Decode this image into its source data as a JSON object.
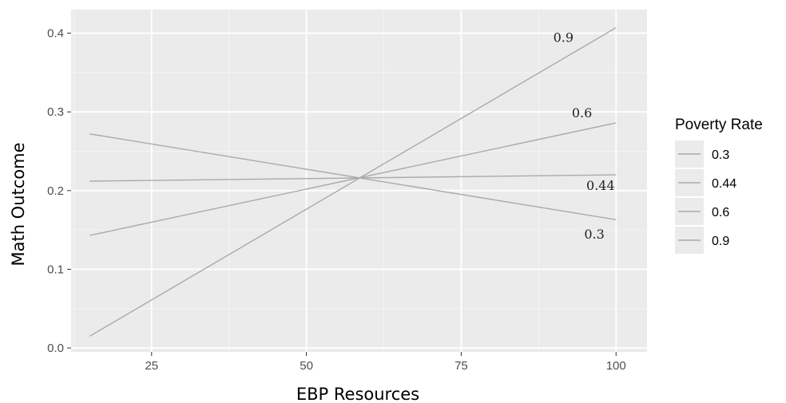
{
  "chart_data": {
    "type": "line",
    "title": "",
    "xlabel": "EBP Resources",
    "ylabel": "Math Outcome",
    "xlim": [
      12,
      105
    ],
    "ylim": [
      -0.005,
      0.43
    ],
    "x_ticks": [
      25,
      50,
      75,
      100
    ],
    "y_ticks": [
      0.0,
      0.1,
      0.2,
      0.3,
      0.4
    ],
    "x_tick_labels": [
      "25",
      "50",
      "75",
      "100"
    ],
    "y_tick_labels": [
      "0.0",
      "0.1",
      "0.2",
      "0.3",
      "0.4"
    ],
    "grid": true,
    "legend": {
      "title": "Poverty Rate",
      "position": "right",
      "entries": [
        "0.3",
        "0.44",
        "0.6",
        "0.9"
      ]
    },
    "series": [
      {
        "name": "0.3",
        "label": "0.3",
        "x": [
          15,
          100
        ],
        "y": [
          0.272,
          0.163
        ],
        "label_at": {
          "x": 96.5,
          "y": 0.139
        }
      },
      {
        "name": "0.44",
        "label": "0.44",
        "x": [
          15,
          100
        ],
        "y": [
          0.212,
          0.22
        ],
        "label_at": {
          "x": 97.5,
          "y": 0.201
        }
      },
      {
        "name": "0.6",
        "label": "0.6",
        "x": [
          15,
          100
        ],
        "y": [
          0.143,
          0.286
        ],
        "label_at": {
          "x": 94.5,
          "y": 0.293
        }
      },
      {
        "name": "0.9",
        "label": "0.9",
        "x": [
          15,
          100
        ],
        "y": [
          0.015,
          0.407
        ],
        "label_at": {
          "x": 91.5,
          "y": 0.389
        }
      }
    ],
    "colors": {
      "panel": "#ebebeb",
      "grid_major": "#ffffff",
      "grid_minor": "#f4f4f4",
      "line": "#aaaaaa",
      "tick_mark": "#333333"
    }
  }
}
